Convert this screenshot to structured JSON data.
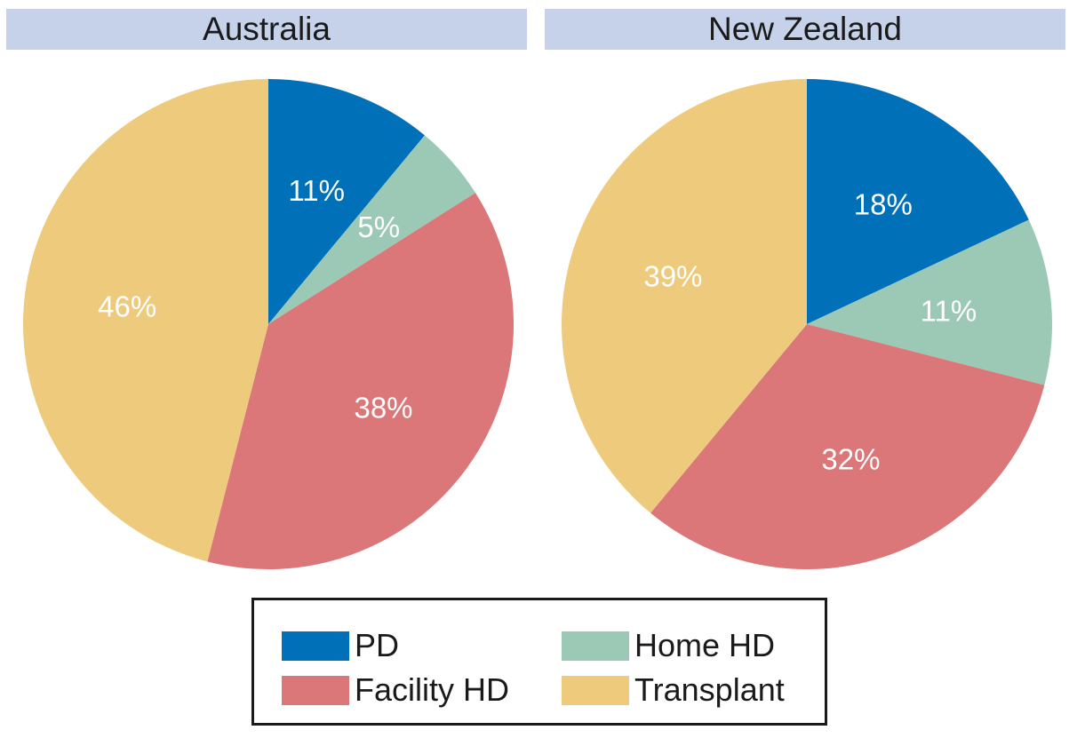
{
  "chart_data": [
    {
      "type": "pie",
      "title": "Australia",
      "categories": [
        "PD",
        "Home HD",
        "Facility HD",
        "Transplant"
      ],
      "values": [
        11,
        5,
        38,
        46
      ],
      "labels": [
        "11%",
        "5%",
        "38%",
        "46%"
      ]
    },
    {
      "type": "pie",
      "title": "New Zealand",
      "categories": [
        "PD",
        "Home HD",
        "Facility HD",
        "Transplant"
      ],
      "values": [
        18,
        11,
        32,
        39
      ],
      "labels": [
        "18%",
        "11%",
        "32%",
        "39%"
      ]
    }
  ],
  "legend": {
    "placement": "bottom-center",
    "items": [
      {
        "label": "PD",
        "color": "#0070b8"
      },
      {
        "label": "Home HD",
        "color": "#9bc9b6"
      },
      {
        "label": "Facility HD",
        "color": "#dc7779"
      },
      {
        "label": "Transplant",
        "color": "#edca7c"
      }
    ]
  }
}
